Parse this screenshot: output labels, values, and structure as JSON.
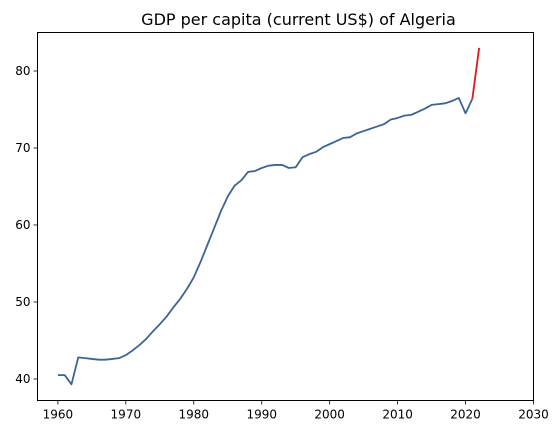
{
  "chart_data": {
    "type": "line",
    "title": "GDP per capita (current US$) of Algeria",
    "xlabel": "",
    "ylabel": "",
    "xlim": [
      1957,
      2030
    ],
    "ylim": [
      37.2,
      85
    ],
    "xticks": [
      1960,
      1970,
      1980,
      1990,
      2000,
      2010,
      2020,
      2030
    ],
    "yticks": [
      40,
      50,
      60,
      70,
      80
    ],
    "grid": false,
    "series": [
      {
        "color": "#3c6496",
        "x": [
          1960,
          1961,
          1962,
          1963,
          1964,
          1965,
          1966,
          1967,
          1968,
          1969,
          1970,
          1971,
          1972,
          1973,
          1974,
          1975,
          1976,
          1977,
          1978,
          1979,
          1980,
          1981,
          1982,
          1983,
          1984,
          1985,
          1986,
          1987,
          1988,
          1989,
          1990,
          1991,
          1992,
          1993,
          1994,
          1995,
          1996,
          1997,
          1998,
          1999,
          2000,
          2001,
          2002,
          2003,
          2004,
          2005,
          2006,
          2007,
          2008,
          2009,
          2010,
          2011,
          2012,
          2013,
          2014,
          2015,
          2016,
          2017,
          2018,
          2019,
          2020,
          2021
        ],
        "y": [
          40.5,
          40.5,
          39.3,
          42.8,
          42.7,
          42.6,
          42.5,
          42.5,
          42.6,
          42.7,
          43.1,
          43.7,
          44.4,
          45.2,
          46.2,
          47.1,
          48.1,
          49.3,
          50.4,
          51.7,
          53.2,
          55.2,
          57.4,
          59.6,
          61.8,
          63.7,
          65.1,
          65.8,
          66.9,
          67.0,
          67.4,
          67.7,
          67.8,
          67.8,
          67.4,
          67.5,
          68.8,
          69.2,
          69.5,
          70.1,
          70.5,
          70.9,
          71.3,
          71.4,
          71.9,
          72.2,
          72.5,
          72.8,
          73.1,
          73.7,
          73.9,
          74.2,
          74.3,
          74.7,
          75.1,
          75.6,
          75.7,
          75.8,
          76.1,
          76.5,
          74.5,
          76.4
        ]
      },
      {
        "color": "#e0161a",
        "x": [
          2021,
          2022
        ],
        "y": [
          76.4,
          83.0
        ]
      }
    ]
  }
}
